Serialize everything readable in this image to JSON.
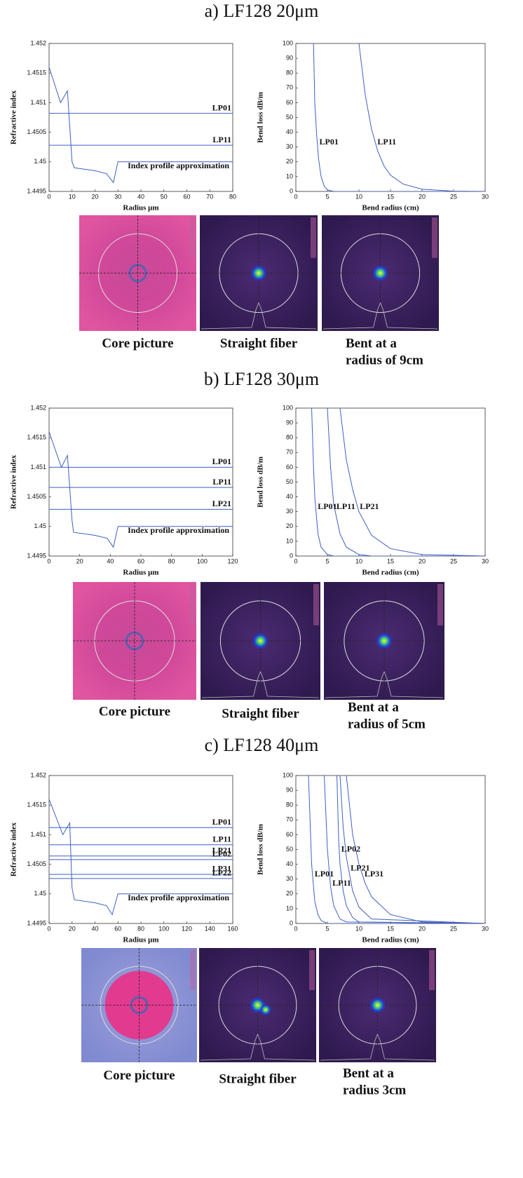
{
  "panels": [
    {
      "title": "a) LF128 20μm",
      "captions": [
        [
          "Core picture"
        ],
        [
          "Straight fiber"
        ],
        [
          "Bent at  a",
          "radius of 9cm"
        ]
      ]
    },
    {
      "title": "b) LF128 30μm",
      "captions": [
        [
          "Core picture"
        ],
        [
          "Straight fiber"
        ],
        [
          "Bent at  a",
          "radius of 5cm"
        ]
      ]
    },
    {
      "title": "c) LF128 40μm",
      "captions": [
        [
          "Core picture"
        ],
        [
          "Straight fiber"
        ],
        [
          "Bent at a",
          "radius 3cm"
        ]
      ]
    }
  ],
  "chart_data": [
    {
      "type": "line",
      "xlabel": "Radius μm",
      "ylabel": "Refractive index",
      "annotation": "Index profile approximation",
      "xlim": [
        0,
        80
      ],
      "xticks": [
        0,
        10,
        20,
        30,
        40,
        50,
        60,
        70,
        80
      ],
      "ylim": [
        1.4495,
        1.452
      ],
      "yticks": [
        1.4495,
        1.45,
        1.4505,
        1.451,
        1.4515,
        1.452
      ],
      "series": [
        {
          "color": "#3f5fc4",
          "x": [
            0,
            5,
            8,
            10,
            11,
            20,
            25,
            28,
            30,
            80
          ],
          "values": [
            1.4516,
            1.451,
            1.4512,
            1.45,
            1.4499,
            1.44985,
            1.4498,
            1.44965,
            1.45,
            1.45
          ]
        },
        {
          "name": "LP01",
          "color": "#3f5fc4",
          "x": [
            0,
            80
          ],
          "values": [
            1.45082,
            1.45082
          ]
        },
        {
          "name": "LP11",
          "color": "#3f5fc4",
          "x": [
            0,
            80
          ],
          "values": [
            1.45028,
            1.45028
          ]
        }
      ]
    },
    {
      "type": "line",
      "xlabel": "Bend radius (cm)",
      "ylabel": "Bend loss dB/m",
      "xlim": [
        0,
        30
      ],
      "xticks": [
        0,
        5,
        10,
        15,
        20,
        25,
        30
      ],
      "ylim": [
        0,
        100
      ],
      "yticks": [
        0,
        10,
        20,
        30,
        40,
        50,
        60,
        70,
        80,
        90,
        100
      ],
      "series": [
        {
          "name": "LP01",
          "color": "#3f5fc4",
          "x": [
            2.8,
            3,
            3.3,
            3.6,
            4,
            4.5,
            5,
            6,
            30
          ],
          "values": [
            100,
            60,
            38,
            22,
            10,
            3.5,
            1,
            0,
            0
          ]
        },
        {
          "name": "LP11",
          "color": "#3f5fc4",
          "x": [
            10,
            11,
            12,
            13,
            14,
            15,
            17,
            20,
            25,
            30
          ],
          "values": [
            100,
            65,
            42,
            27,
            17,
            11,
            5,
            1.5,
            0.2,
            0
          ]
        }
      ]
    },
    {
      "type": "line",
      "xlabel": "Radius μm",
      "ylabel": "Refractive index",
      "annotation": "Index profile approximation",
      "xlim": [
        0,
        120
      ],
      "xticks": [
        0,
        20,
        40,
        60,
        80,
        100,
        120
      ],
      "ylim": [
        1.4495,
        1.452
      ],
      "yticks": [
        1.4495,
        1.45,
        1.4505,
        1.451,
        1.4515,
        1.452
      ],
      "series": [
        {
          "color": "#3f5fc4",
          "x": [
            0,
            8,
            12,
            15,
            16,
            30,
            38,
            42,
            45,
            120
          ],
          "values": [
            1.4516,
            1.451,
            1.4512,
            1.4501,
            1.4499,
            1.44985,
            1.4498,
            1.44965,
            1.45,
            1.45
          ]
        },
        {
          "name": "LP01",
          "color": "#3f5fc4",
          "x": [
            0,
            120
          ],
          "values": [
            1.451,
            1.451
          ]
        },
        {
          "name": "LP11",
          "color": "#3f5fc4",
          "x": [
            0,
            120
          ],
          "values": [
            1.45066,
            1.45066
          ]
        },
        {
          "name": "LP21",
          "color": "#3f5fc4",
          "x": [
            0,
            120
          ],
          "values": [
            1.45029,
            1.45029
          ]
        }
      ]
    },
    {
      "type": "line",
      "xlabel": "Bend radius (cm)",
      "ylabel": "Bend loss dB/m",
      "xlim": [
        0,
        30
      ],
      "xticks": [
        0,
        5,
        10,
        15,
        20,
        25,
        30
      ],
      "ylim": [
        0,
        100
      ],
      "yticks": [
        0,
        10,
        20,
        30,
        40,
        50,
        60,
        70,
        80,
        90,
        100
      ],
      "series": [
        {
          "name": "LP01",
          "color": "#3f5fc4",
          "x": [
            2.5,
            2.8,
            3,
            3.5,
            4,
            5,
            6,
            30
          ],
          "values": [
            100,
            60,
            40,
            15,
            6,
            1,
            0,
            0
          ]
        },
        {
          "name": "LP11",
          "color": "#3f5fc4",
          "x": [
            5,
            5.5,
            6,
            7,
            8,
            10,
            12,
            30
          ],
          "values": [
            100,
            60,
            35,
            15,
            6,
            1,
            0,
            0
          ]
        },
        {
          "name": "LP21",
          "color": "#3f5fc4",
          "x": [
            7,
            8,
            9,
            10,
            12,
            15,
            20,
            30
          ],
          "values": [
            100,
            65,
            45,
            30,
            14,
            5,
            1,
            0
          ]
        }
      ]
    },
    {
      "type": "line",
      "xlabel": "Radius μm",
      "ylabel": "Refractive index",
      "annotation": "Index profile approximation",
      "xlim": [
        0,
        160
      ],
      "xticks": [
        0,
        20,
        40,
        60,
        80,
        100,
        120,
        140,
        160
      ],
      "ylim": [
        1.4495,
        1.452
      ],
      "yticks": [
        1.4495,
        1.45,
        1.4505,
        1.451,
        1.4515,
        1.452
      ],
      "series": [
        {
          "color": "#3f5fc4",
          "x": [
            0,
            12,
            18,
            20,
            22,
            40,
            50,
            55,
            60,
            160
          ],
          "values": [
            1.4516,
            1.451,
            1.4512,
            1.4501,
            1.4499,
            1.44985,
            1.4498,
            1.44965,
            1.45,
            1.45
          ]
        },
        {
          "name": "LP01",
          "color": "#3f5fc4",
          "x": [
            0,
            160
          ],
          "values": [
            1.45112,
            1.45112
          ]
        },
        {
          "name": "LP11",
          "color": "#3f5fc4",
          "x": [
            0,
            160
          ],
          "values": [
            1.45083,
            1.45083
          ]
        },
        {
          "name": "LP21",
          "color": "#3f5fc4",
          "x": [
            0,
            160
          ],
          "values": [
            1.45064,
            1.45064
          ]
        },
        {
          "name": "LP02",
          "color": "#3f5fc4",
          "x": [
            0,
            160
          ],
          "values": [
            1.45058,
            1.45058
          ]
        },
        {
          "name": "LP31",
          "color": "#3f5fc4",
          "x": [
            0,
            160
          ],
          "values": [
            1.45033,
            1.45033
          ]
        },
        {
          "name": "LP22",
          "color": "#3f5fc4",
          "x": [
            0,
            160
          ],
          "values": [
            1.45026,
            1.45026
          ]
        }
      ]
    },
    {
      "type": "line",
      "xlabel": "Bend radius (cm)",
      "ylabel": "Bend loss dB/m",
      "xlim": [
        0,
        30
      ],
      "xticks": [
        0,
        5,
        10,
        15,
        20,
        25,
        30
      ],
      "ylim": [
        0,
        100
      ],
      "yticks": [
        0,
        10,
        20,
        30,
        40,
        50,
        60,
        70,
        80,
        90,
        100
      ],
      "series": [
        {
          "name": "LP01",
          "color": "#3f5fc4",
          "x": [
            2,
            2.5,
            3,
            3.5,
            4,
            5,
            30
          ],
          "values": [
            100,
            40,
            15,
            6,
            2,
            0,
            0
          ]
        },
        {
          "name": "LP11",
          "color": "#3f5fc4",
          "x": [
            4.5,
            5,
            5.5,
            6,
            7,
            8,
            30
          ],
          "values": [
            100,
            50,
            25,
            12,
            3,
            1,
            0
          ]
        },
        {
          "name": "LP02",
          "color": "#3f5fc4",
          "x": [
            6.5,
            6.8,
            7,
            7.5,
            8,
            9,
            10,
            30
          ],
          "values": [
            100,
            55,
            40,
            22,
            12,
            4,
            1,
            0
          ]
        },
        {
          "name": "LP21",
          "color": "#3f5fc4",
          "x": [
            7,
            7.5,
            8,
            9,
            10,
            12,
            30
          ],
          "values": [
            100,
            65,
            45,
            22,
            11,
            3,
            0
          ]
        },
        {
          "name": "LP31",
          "color": "#3f5fc4",
          "x": [
            8,
            9,
            10,
            11,
            12,
            15,
            20,
            30
          ],
          "values": [
            100,
            60,
            40,
            27,
            18,
            6,
            1,
            0
          ]
        }
      ]
    }
  ]
}
